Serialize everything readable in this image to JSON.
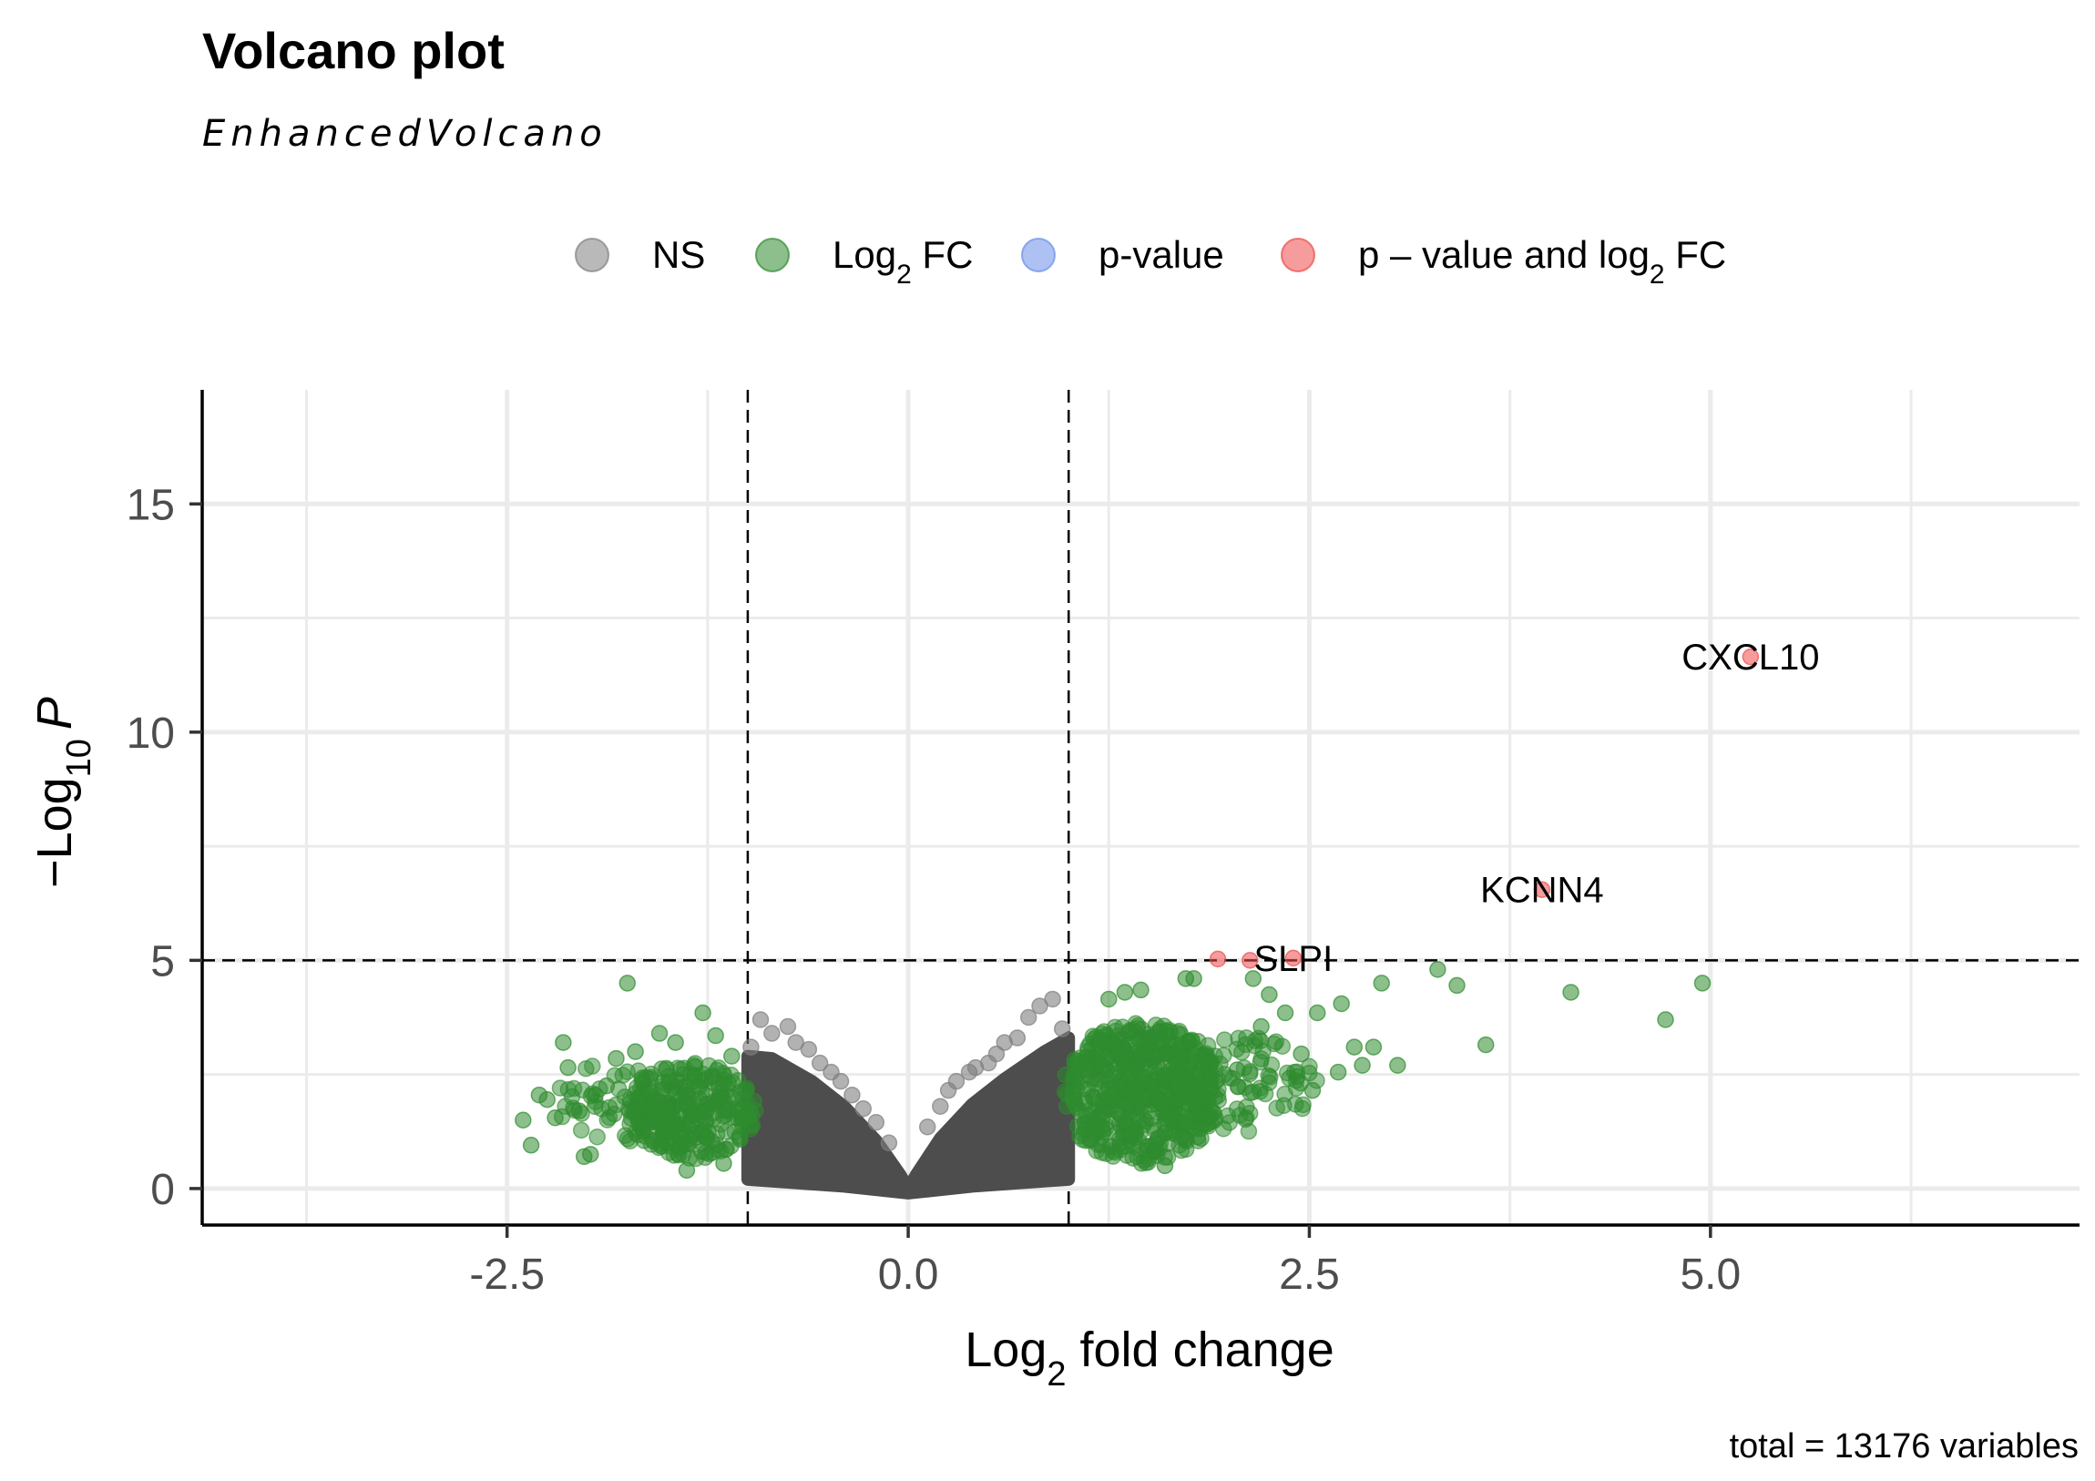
{
  "chart_data": {
    "type": "scatter",
    "title": "Volcano plot",
    "subtitle": "EnhancedVolcano",
    "caption": "total = 13176 variables",
    "xlabel": {
      "base": "Log",
      "sub": "2",
      "rest": " fold change"
    },
    "ylabel": {
      "prefix": "−Log",
      "sub": "10",
      "var": "P"
    },
    "xlim": [
      -4.4,
      7.3
    ],
    "ylim": [
      -0.8,
      17.5
    ],
    "x_ticks": [
      -2.5,
      0.0,
      2.5,
      5.0
    ],
    "x_tick_labels": [
      "-2.5",
      "0.0",
      "2.5",
      "5.0"
    ],
    "y_ticks": [
      0,
      5,
      10,
      15
    ],
    "y_tick_labels": [
      "0",
      "5",
      "10",
      "15"
    ],
    "x_minor_ticks": [
      -3.75,
      -1.25,
      1.25,
      3.75,
      6.25
    ],
    "y_minor_ticks": [
      2.5,
      7.5,
      12.5
    ],
    "cutoffs": {
      "fc": [
        -1,
        1
      ],
      "p": 5
    },
    "grid": true,
    "legend_position": "top",
    "legend": [
      {
        "key": "ns",
        "parts": [
          {
            "t": "NS"
          }
        ],
        "color": "#7f7f7f"
      },
      {
        "key": "fc",
        "parts": [
          {
            "t": "Log"
          },
          {
            "t": "2",
            "sub": true
          },
          {
            "t": " FC"
          }
        ],
        "color": "#2e8b2e"
      },
      {
        "key": "p",
        "parts": [
          {
            "t": "p-value"
          }
        ],
        "color": "#6a8ee8"
      },
      {
        "key": "pfc",
        "parts": [
          {
            "t": "p – value and log"
          },
          {
            "t": "2",
            "sub": true
          },
          {
            "t": " FC"
          }
        ],
        "color": "#ee4a4a"
      }
    ],
    "colors": {
      "ns": "#7f7f7f",
      "fc": "#2e8b2e",
      "p": "#6a8ee8",
      "pfc": "#ee4a4a",
      "ns_dense": "#4d4d4d"
    },
    "series": [
      {
        "key": "pfc",
        "points": [
          {
            "x": 5.25,
            "y": 11.65
          },
          {
            "x": 3.95,
            "y": 6.55
          },
          {
            "x": 2.4,
            "y": 5.05
          },
          {
            "x": 1.93,
            "y": 5.03
          },
          {
            "x": 2.13,
            "y": 5.0
          }
        ]
      },
      {
        "key": "fc",
        "points": [
          {
            "x": 4.95,
            "y": 4.5
          },
          {
            "x": 4.72,
            "y": 3.7
          },
          {
            "x": 4.13,
            "y": 4.3
          },
          {
            "x": 3.6,
            "y": 3.15
          },
          {
            "x": 3.42,
            "y": 4.45
          },
          {
            "x": 3.3,
            "y": 4.8
          },
          {
            "x": 3.05,
            "y": 2.7
          },
          {
            "x": 2.95,
            "y": 4.5
          },
          {
            "x": 2.9,
            "y": 3.1
          },
          {
            "x": 2.83,
            "y": 2.7
          },
          {
            "x": 2.78,
            "y": 3.1
          },
          {
            "x": 2.7,
            "y": 4.05
          },
          {
            "x": 2.68,
            "y": 2.55
          },
          {
            "x": 2.55,
            "y": 3.85
          },
          {
            "x": 2.52,
            "y": 2.15
          },
          {
            "x": 2.45,
            "y": 2.95
          },
          {
            "x": 2.35,
            "y": 3.85
          },
          {
            "x": 2.25,
            "y": 4.25
          },
          {
            "x": 2.2,
            "y": 3.55
          },
          {
            "x": 2.15,
            "y": 4.6
          },
          {
            "x": 2.05,
            "y": 2.6
          },
          {
            "x": 1.78,
            "y": 4.6
          },
          {
            "x": 1.73,
            "y": 4.6
          },
          {
            "x": 1.6,
            "y": 0.5
          },
          {
            "x": 1.45,
            "y": 4.35
          },
          {
            "x": 1.35,
            "y": 4.3
          },
          {
            "x": 1.25,
            "y": 4.15
          },
          {
            "x": -1.75,
            "y": 4.5
          },
          {
            "x": -1.28,
            "y": 3.85
          },
          {
            "x": -2.15,
            "y": 3.2
          },
          {
            "x": -2.12,
            "y": 2.65
          },
          {
            "x": -2.3,
            "y": 2.05
          },
          {
            "x": -2.35,
            "y": 0.95
          },
          {
            "x": -2.4,
            "y": 1.5
          },
          {
            "x": -2.2,
            "y": 1.55
          },
          {
            "x": -1.98,
            "y": 0.75
          },
          {
            "x": -1.95,
            "y": 2.05
          },
          {
            "x": -1.88,
            "y": 2.25
          },
          {
            "x": -1.82,
            "y": 2.85
          },
          {
            "x": -1.7,
            "y": 3.0
          },
          {
            "x": -1.55,
            "y": 3.4
          },
          {
            "x": -1.45,
            "y": 3.2
          },
          {
            "x": -1.38,
            "y": 0.4
          },
          {
            "x": -1.2,
            "y": 3.35
          },
          {
            "x": -1.15,
            "y": 0.55
          },
          {
            "x": -1.1,
            "y": 2.9
          },
          {
            "x": -2.05,
            "y": 1.7
          },
          {
            "x": -2.25,
            "y": 1.95
          },
          {
            "x": -2.02,
            "y": 0.7
          }
        ]
      },
      {
        "key": "ns",
        "points": [
          {
            "x": 0.9,
            "y": 4.15
          },
          {
            "x": 0.82,
            "y": 4.0
          },
          {
            "x": 0.75,
            "y": 3.75
          },
          {
            "x": 0.68,
            "y": 3.3
          },
          {
            "x": 0.6,
            "y": 3.2
          },
          {
            "x": 0.55,
            "y": 2.95
          },
          {
            "x": 0.5,
            "y": 2.75
          },
          {
            "x": 0.42,
            "y": 2.65
          },
          {
            "x": 0.38,
            "y": 2.55
          },
          {
            "x": 0.3,
            "y": 2.35
          },
          {
            "x": 0.25,
            "y": 2.15
          },
          {
            "x": 0.2,
            "y": 1.8
          },
          {
            "x": 0.12,
            "y": 1.35
          },
          {
            "x": 0.96,
            "y": 3.5
          },
          {
            "x": -0.98,
            "y": 3.1
          },
          {
            "x": -0.92,
            "y": 3.7
          },
          {
            "x": -0.85,
            "y": 3.4
          },
          {
            "x": -0.75,
            "y": 3.55
          },
          {
            "x": -0.7,
            "y": 3.2
          },
          {
            "x": -0.62,
            "y": 3.05
          },
          {
            "x": -0.55,
            "y": 2.75
          },
          {
            "x": -0.48,
            "y": 2.55
          },
          {
            "x": -0.42,
            "y": 2.35
          },
          {
            "x": -0.35,
            "y": 2.05
          },
          {
            "x": -0.28,
            "y": 1.75
          },
          {
            "x": -0.2,
            "y": 1.45
          },
          {
            "x": -0.12,
            "y": 1.0
          }
        ]
      }
    ],
    "labels": [
      {
        "text": "CXCL10",
        "x": 5.25,
        "y": 11.65
      },
      {
        "text": "KCNN4",
        "x": 3.95,
        "y": 6.55
      },
      {
        "text": "SLPI",
        "x": 2.4,
        "y": 5.05
      }
    ]
  }
}
